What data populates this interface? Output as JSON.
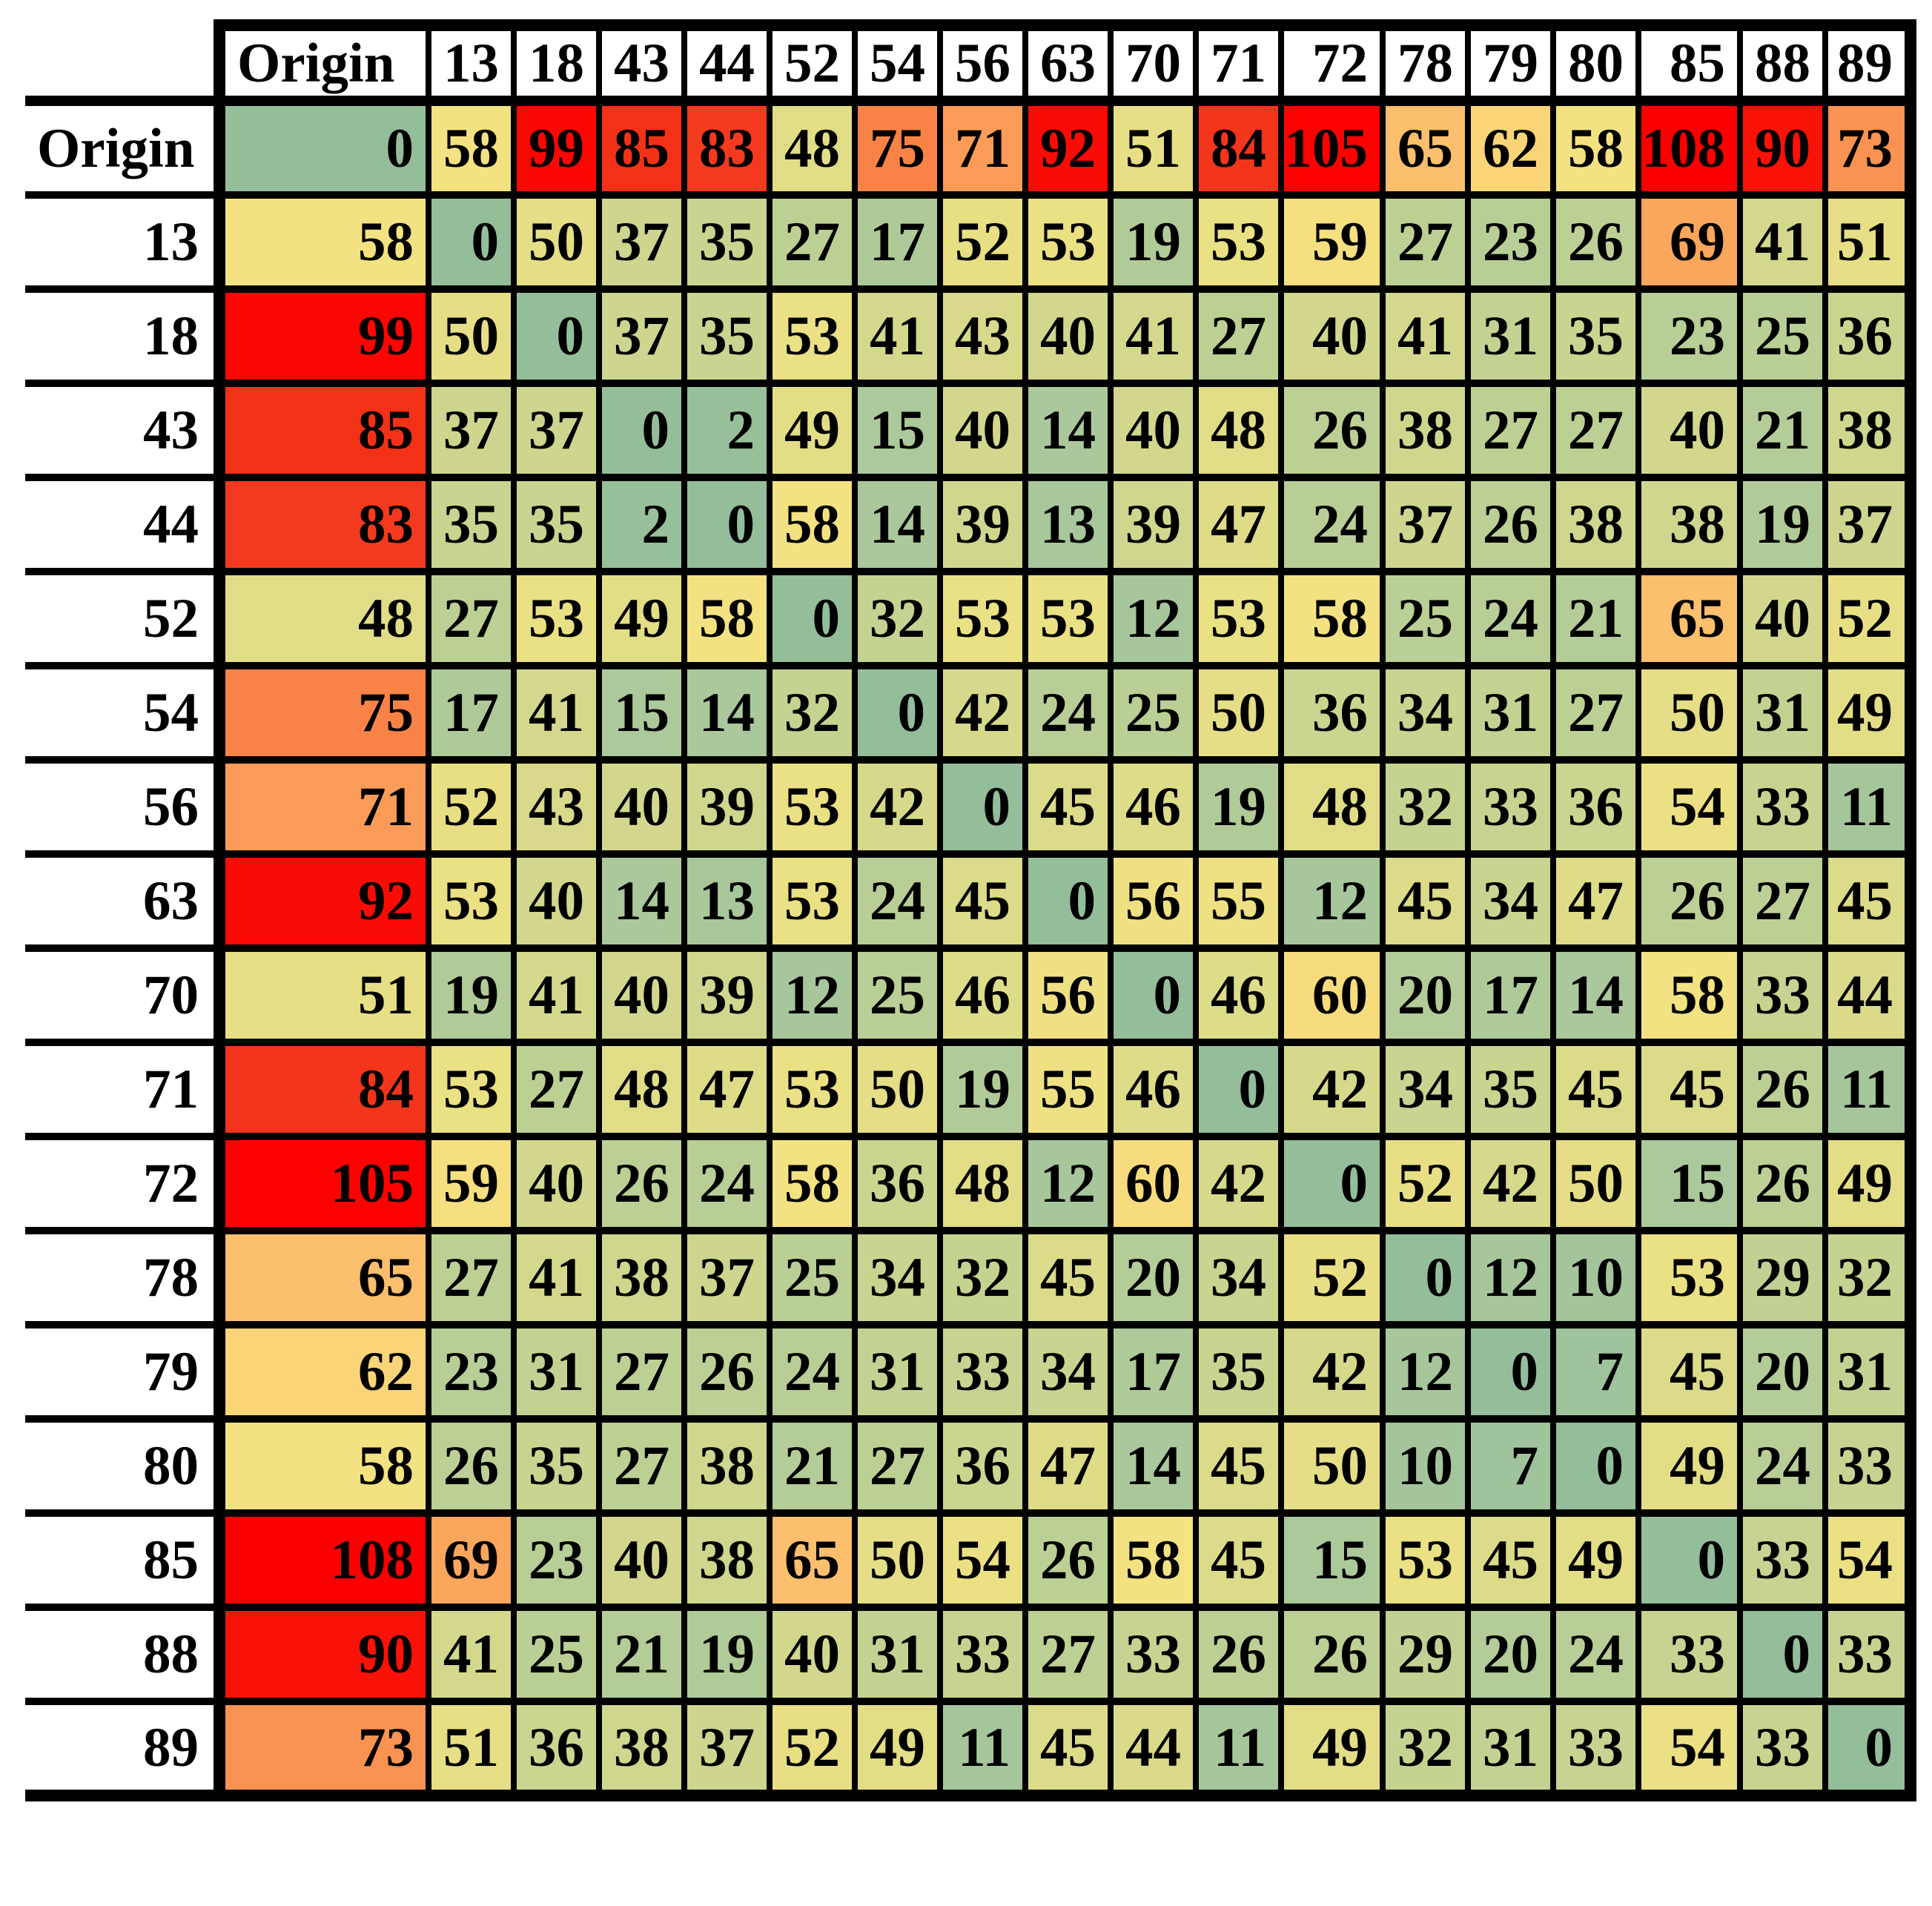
{
  "figure": {
    "kind": "origin-destination-distance-matrix-heatmap"
  },
  "matrix": {
    "corner_label": "",
    "columns": [
      "Origin",
      "13",
      "18",
      "43",
      "44",
      "52",
      "54",
      "56",
      "63",
      "70",
      "71",
      "72",
      "78",
      "79",
      "80",
      "85",
      "88",
      "89"
    ],
    "rows": [
      {
        "label": "Origin",
        "values": [
          0,
          58,
          99,
          85,
          83,
          48,
          75,
          71,
          92,
          51,
          84,
          105,
          65,
          62,
          58,
          108,
          90,
          73
        ]
      },
      {
        "label": "13",
        "values": [
          58,
          0,
          50,
          37,
          35,
          27,
          17,
          52,
          53,
          19,
          53,
          59,
          27,
          23,
          26,
          69,
          41,
          51
        ]
      },
      {
        "label": "18",
        "values": [
          99,
          50,
          0,
          37,
          35,
          53,
          41,
          43,
          40,
          41,
          27,
          40,
          41,
          31,
          35,
          23,
          25,
          36
        ]
      },
      {
        "label": "43",
        "values": [
          85,
          37,
          37,
          0,
          2,
          49,
          15,
          40,
          14,
          40,
          48,
          26,
          38,
          27,
          27,
          40,
          21,
          38
        ]
      },
      {
        "label": "44",
        "values": [
          83,
          35,
          35,
          2,
          0,
          58,
          14,
          39,
          13,
          39,
          47,
          24,
          37,
          26,
          38,
          38,
          19,
          37
        ]
      },
      {
        "label": "52",
        "values": [
          48,
          27,
          53,
          49,
          58,
          0,
          32,
          53,
          53,
          12,
          53,
          58,
          25,
          24,
          21,
          65,
          40,
          52
        ]
      },
      {
        "label": "54",
        "values": [
          75,
          17,
          41,
          15,
          14,
          32,
          0,
          42,
          24,
          25,
          50,
          36,
          34,
          31,
          27,
          50,
          31,
          49
        ]
      },
      {
        "label": "56",
        "values": [
          71,
          52,
          43,
          40,
          39,
          53,
          42,
          0,
          45,
          46,
          19,
          48,
          32,
          33,
          36,
          54,
          33,
          11
        ]
      },
      {
        "label": "63",
        "values": [
          92,
          53,
          40,
          14,
          13,
          53,
          24,
          45,
          0,
          56,
          55,
          12,
          45,
          34,
          47,
          26,
          27,
          45
        ]
      },
      {
        "label": "70",
        "values": [
          51,
          19,
          41,
          40,
          39,
          12,
          25,
          46,
          56,
          0,
          46,
          60,
          20,
          17,
          14,
          58,
          33,
          44
        ]
      },
      {
        "label": "71",
        "values": [
          84,
          53,
          27,
          48,
          47,
          53,
          50,
          19,
          55,
          46,
          0,
          42,
          34,
          35,
          45,
          45,
          26,
          11
        ]
      },
      {
        "label": "72",
        "values": [
          105,
          59,
          40,
          26,
          24,
          58,
          36,
          48,
          12,
          60,
          42,
          0,
          52,
          42,
          50,
          15,
          26,
          49
        ]
      },
      {
        "label": "78",
        "values": [
          65,
          27,
          41,
          38,
          37,
          25,
          34,
          32,
          45,
          20,
          34,
          52,
          0,
          12,
          10,
          53,
          29,
          32
        ]
      },
      {
        "label": "79",
        "values": [
          62,
          23,
          31,
          27,
          26,
          24,
          31,
          33,
          34,
          17,
          35,
          42,
          12,
          0,
          7,
          45,
          20,
          31
        ]
      },
      {
        "label": "80",
        "values": [
          58,
          26,
          35,
          27,
          38,
          21,
          27,
          36,
          47,
          14,
          45,
          50,
          10,
          7,
          0,
          49,
          24,
          33
        ]
      },
      {
        "label": "85",
        "values": [
          108,
          69,
          23,
          40,
          38,
          65,
          50,
          54,
          26,
          58,
          45,
          15,
          53,
          45,
          49,
          0,
          33,
          54
        ]
      },
      {
        "label": "88",
        "values": [
          90,
          41,
          25,
          21,
          19,
          40,
          31,
          33,
          27,
          33,
          26,
          26,
          29,
          20,
          24,
          33,
          0,
          33
        ]
      },
      {
        "label": "89",
        "values": [
          73,
          51,
          36,
          38,
          37,
          52,
          49,
          11,
          45,
          44,
          11,
          49,
          32,
          31,
          33,
          54,
          33,
          0
        ]
      }
    ]
  },
  "color_scale": {
    "description": "green-yellow-red conditional formatting ramp",
    "stops": [
      {
        "value": 0,
        "color": "#94BD9A"
      },
      {
        "value": 14,
        "color": "#AAC89B"
      },
      {
        "value": 27,
        "color": "#BDD094"
      },
      {
        "value": 40,
        "color": "#D2D78D"
      },
      {
        "value": 49,
        "color": "#E3DE86"
      },
      {
        "value": 58,
        "color": "#F3E282"
      },
      {
        "value": 62,
        "color": "#FAD577"
      },
      {
        "value": 65,
        "color": "#FBBF6D"
      },
      {
        "value": 69,
        "color": "#FAA65C"
      },
      {
        "value": 73,
        "color": "#FA9251"
      },
      {
        "value": 77,
        "color": "#F8733C"
      },
      {
        "value": 83,
        "color": "#F43A1E"
      },
      {
        "value": 86,
        "color": "#F22C14"
      },
      {
        "value": 91,
        "color": "#FA0C05"
      },
      {
        "value": 108,
        "color": "#FB0000"
      }
    ]
  },
  "chart_data": {
    "type": "heatmap",
    "title": "",
    "x_categories": [
      "Origin",
      "13",
      "18",
      "43",
      "44",
      "52",
      "54",
      "56",
      "63",
      "70",
      "71",
      "72",
      "78",
      "79",
      "80",
      "85",
      "88",
      "89"
    ],
    "y_categories": [
      "Origin",
      "13",
      "18",
      "43",
      "44",
      "52",
      "54",
      "56",
      "63",
      "70",
      "71",
      "72",
      "78",
      "79",
      "80",
      "85",
      "88",
      "89"
    ],
    "values": [
      [
        0,
        58,
        99,
        85,
        83,
        48,
        75,
        71,
        92,
        51,
        84,
        105,
        65,
        62,
        58,
        108,
        90,
        73
      ],
      [
        58,
        0,
        50,
        37,
        35,
        27,
        17,
        52,
        53,
        19,
        53,
        59,
        27,
        23,
        26,
        69,
        41,
        51
      ],
      [
        99,
        50,
        0,
        37,
        35,
        53,
        41,
        43,
        40,
        41,
        27,
        40,
        41,
        31,
        35,
        23,
        25,
        36
      ],
      [
        85,
        37,
        37,
        0,
        2,
        49,
        15,
        40,
        14,
        40,
        48,
        26,
        38,
        27,
        27,
        40,
        21,
        38
      ],
      [
        83,
        35,
        35,
        2,
        0,
        58,
        14,
        39,
        13,
        39,
        47,
        24,
        37,
        26,
        38,
        38,
        19,
        37
      ],
      [
        48,
        27,
        53,
        49,
        58,
        0,
        32,
        53,
        53,
        12,
        53,
        58,
        25,
        24,
        21,
        65,
        40,
        52
      ],
      [
        75,
        17,
        41,
        15,
        14,
        32,
        0,
        42,
        24,
        25,
        50,
        36,
        34,
        31,
        27,
        50,
        31,
        49
      ],
      [
        71,
        52,
        43,
        40,
        39,
        53,
        42,
        0,
        45,
        46,
        19,
        48,
        32,
        33,
        36,
        54,
        33,
        11
      ],
      [
        92,
        53,
        40,
        14,
        13,
        53,
        24,
        45,
        0,
        56,
        55,
        12,
        45,
        34,
        47,
        26,
        27,
        45
      ],
      [
        51,
        19,
        41,
        40,
        39,
        12,
        25,
        46,
        56,
        0,
        46,
        60,
        20,
        17,
        14,
        58,
        33,
        44
      ],
      [
        84,
        53,
        27,
        48,
        47,
        53,
        50,
        19,
        55,
        46,
        0,
        42,
        34,
        35,
        45,
        45,
        26,
        11
      ],
      [
        105,
        59,
        40,
        26,
        24,
        58,
        36,
        48,
        12,
        60,
        42,
        0,
        52,
        42,
        50,
        15,
        26,
        49
      ],
      [
        65,
        27,
        41,
        38,
        37,
        25,
        34,
        32,
        45,
        20,
        34,
        52,
        0,
        12,
        10,
        53,
        29,
        32
      ],
      [
        62,
        23,
        31,
        27,
        26,
        24,
        31,
        33,
        34,
        17,
        35,
        42,
        12,
        0,
        7,
        45,
        20,
        31
      ],
      [
        58,
        26,
        35,
        27,
        38,
        21,
        27,
        36,
        47,
        14,
        45,
        50,
        10,
        7,
        0,
        49,
        24,
        33
      ],
      [
        108,
        69,
        23,
        40,
        38,
        65,
        50,
        54,
        26,
        58,
        45,
        15,
        53,
        45,
        49,
        0,
        33,
        54
      ],
      [
        90,
        41,
        25,
        21,
        19,
        40,
        31,
        33,
        27,
        33,
        26,
        26,
        29,
        20,
        24,
        33,
        0,
        33
      ],
      [
        73,
        51,
        36,
        38,
        37,
        52,
        49,
        11,
        45,
        44,
        11,
        49,
        32,
        31,
        33,
        54,
        33,
        0
      ]
    ],
    "value_range": [
      0,
      108
    ],
    "legend": "none",
    "grid": "black cell borders",
    "color_low": "#94BD9A",
    "color_mid": "#F3E282",
    "color_high": "#FB0000"
  }
}
